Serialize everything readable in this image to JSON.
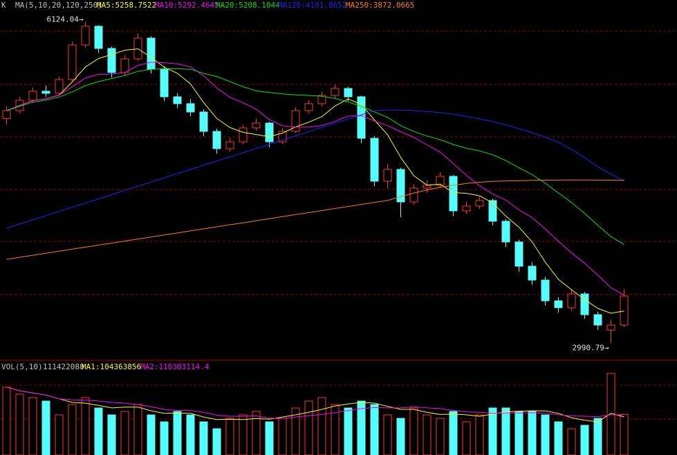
{
  "chart_data": [
    {
      "type": "candlestick",
      "title": "K",
      "subtitle": "MA(5,10,20,120,250)",
      "up_color": "#ff3232",
      "down_color": "#54fcfc",
      "ylim": [
        2900,
        6200
      ],
      "open": [
        5180,
        5257,
        5358,
        5446,
        5426,
        5560,
        5897,
        6079,
        5863,
        5628,
        5762,
        5964,
        5661,
        5392,
        5325,
        5244,
        5055,
        4887,
        4954,
        5089,
        5136,
        4954,
        5055,
        5257,
        5325,
        5405,
        5473,
        5392,
        4988,
        4570,
        4685,
        4368,
        4503,
        4530,
        4617,
        4281,
        4328,
        4382,
        4180,
        3978,
        3742,
        3607,
        3405,
        3338,
        3472,
        3270,
        3120,
        3169
      ],
      "high": [
        5300,
        5390,
        5480,
        5500,
        5590,
        5930,
        6124.04,
        6090,
        5880,
        5800,
        6010,
        5980,
        5690,
        5430,
        5370,
        5270,
        5080,
        4990,
        5120,
        5180,
        5150,
        5090,
        5290,
        5360,
        5440,
        5510,
        5490,
        5400,
        5010,
        4740,
        4700,
        4540,
        4580,
        4660,
        4630,
        4370,
        4420,
        4400,
        4200,
        4000,
        3780,
        3640,
        3440,
        3520,
        3490,
        3300,
        3220,
        3520
      ],
      "low": [
        5120,
        5230,
        5330,
        5390,
        5400,
        5540,
        5870,
        5820,
        5580,
        5600,
        5740,
        5620,
        5350,
        5280,
        5200,
        5010,
        4840,
        4860,
        4930,
        5060,
        4900,
        4930,
        5040,
        5230,
        5300,
        5380,
        5350,
        4940,
        4520,
        4500,
        4220,
        4340,
        4460,
        4500,
        4230,
        4250,
        4300,
        4140,
        3930,
        3690,
        3560,
        3360,
        3290,
        3310,
        3230,
        3120,
        2990.79,
        3150
      ],
      "close": [
        5257,
        5358,
        5446,
        5426,
        5560,
        5897,
        6079,
        5863,
        5628,
        5762,
        5964,
        5661,
        5392,
        5325,
        5244,
        5055,
        4887,
        4954,
        5089,
        5136,
        4954,
        5055,
        5257,
        5325,
        5405,
        5473,
        5392,
        4988,
        4570,
        4685,
        4368,
        4503,
        4530,
        4617,
        4281,
        4328,
        4382,
        4180,
        3978,
        3742,
        3607,
        3405,
        3338,
        3472,
        3270,
        3169,
        3169,
        3452
      ],
      "series": [
        {
          "name": "MA5:5258.7522",
          "color": "#ffff00",
          "values": [
            5257,
            5308,
            5354,
            5372,
            5409,
            5537,
            5682,
            5765,
            5805,
            5846,
            5859,
            5776,
            5681,
            5621,
            5517,
            5335,
            5181,
            5093,
            5046,
            5024,
            5004,
            5038,
            5098,
            5145,
            5199,
            5303,
            5370,
            5317,
            5166,
            5022,
            4801,
            4623,
            4531,
            4541,
            4460,
            4452,
            4428,
            4358,
            4230,
            4122,
            3978,
            3782,
            3614,
            3513,
            3418,
            3331,
            3284,
            3306
          ]
        },
        {
          "name": "MA10:5292.4645",
          "color": "#ff00ff",
          "values": [
            5257,
            5308,
            5354,
            5372,
            5409,
            5491,
            5575,
            5611,
            5613,
            5628,
            5698,
            5729,
            5723,
            5713,
            5682,
            5597,
            5479,
            5387,
            5334,
            5271,
            5170,
            5110,
            5096,
            5096,
            5112,
            5154,
            5204,
            5208,
            5156,
            5111,
            5052,
            4997,
            4924,
            4854,
            4741,
            4627,
            4526,
            4445,
            4386,
            4291,
            4215,
            4105,
            3986,
            3872,
            3770,
            3655,
            3533,
            3460
          ]
        },
        {
          "name": "MA20:5208.1044",
          "color": "#00e600",
          "values": [
            5257,
            5300,
            5340,
            5360,
            5390,
            5440,
            5500,
            5540,
            5570,
            5600,
            5640,
            5660,
            5665,
            5665,
            5660,
            5620,
            5590,
            5540,
            5490,
            5450,
            5434,
            5420,
            5410,
            5405,
            5397,
            5376,
            5342,
            5298,
            5245,
            5191,
            5111,
            5054,
            5010,
            4975,
            4927,
            4891,
            4865,
            4827,
            4771,
            4701,
            4634,
            4551,
            4455,
            4363,
            4256,
            4141,
            4030,
            3953
          ]
        },
        {
          "name": "MA120:4191.8652",
          "color": "#2020ff",
          "values": [
            4112,
            4153,
            4194,
            4235,
            4276,
            4317,
            4357,
            4398,
            4439,
            4480,
            4521,
            4562,
            4603,
            4644,
            4685,
            4726,
            4766,
            4807,
            4848,
            4889,
            4930,
            4971,
            5012,
            5053,
            5094,
            5135,
            5175,
            5216,
            5257,
            5262,
            5262,
            5258,
            5250,
            5238,
            5222,
            5202,
            5178,
            5150,
            5118,
            5082,
            5042,
            4998,
            4950,
            4880,
            4800,
            4710,
            4640,
            4570
          ]
        },
        {
          "name": "MA250:3872.0665",
          "color": "#ff8000",
          "values": [
            3809,
            3829,
            3849,
            3868,
            3888,
            3908,
            3928,
            3948,
            3967,
            3987,
            4007,
            4027,
            4047,
            4066,
            4086,
            4106,
            4126,
            4146,
            4165,
            4185,
            4205,
            4225,
            4245,
            4264,
            4284,
            4304,
            4324,
            4344,
            4363,
            4382,
            4420,
            4455,
            4485,
            4510,
            4530,
            4548,
            4560,
            4568,
            4572,
            4575,
            4578,
            4580,
            4581,
            4582,
            4582,
            4581,
            4580,
            4578
          ]
        }
      ],
      "annotations": [
        {
          "value": 6124.04,
          "label": "6124.04→"
        },
        {
          "value": 2990.79,
          "label": "2990.79→"
        }
      ]
    },
    {
      "type": "bar",
      "title": "VOL(5,10)",
      "ylim": [
        0,
        250000000
      ],
      "values": [
        185600000,
        166700000,
        157200000,
        147700000,
        109900000,
        138300000,
        157200000,
        128800000,
        109900000,
        119300000,
        138300000,
        109900000,
        90900000,
        119300000,
        109900000,
        90900000,
        72000000,
        100400000,
        109900000,
        119300000,
        90900000,
        100400000,
        128800000,
        147700000,
        157200000,
        138300000,
        128800000,
        147700000,
        138300000,
        109900000,
        100400000,
        128800000,
        109900000,
        100400000,
        119300000,
        90900000,
        109900000,
        128800000,
        128800000,
        119300000,
        119300000,
        109900000,
        90900000,
        72000000,
        81400000,
        100400000,
        223500000,
        111422088
      ],
      "series": [
        {
          "name": "MA1:104363856",
          "color": "#ffff00",
          "values": [
            186000000,
            176000000,
            170000000,
            164000000,
            154000000,
            144000000,
            142000000,
            136000000,
            129000000,
            131000000,
            131000000,
            121000000,
            114000000,
            115000000,
            114000000,
            104000000,
            97000000,
            98000000,
            97000000,
            100000000,
            98000000,
            104000000,
            110000000,
            117000000,
            125000000,
            134000000,
            140000000,
            144000000,
            142000000,
            133000000,
            125000000,
            125000000,
            117000000,
            111000000,
            112000000,
            110000000,
            106000000,
            112000000,
            118000000,
            120000000,
            121000000,
            121000000,
            114000000,
            102000000,
            95000000,
            91000000,
            114000000,
            104363856
          ]
        },
        {
          "name": "MA2:110303114.4",
          "color": "#ff00ff",
          "values": [
            186000000,
            176000000,
            170000000,
            164000000,
            154000000,
            151000000,
            150000000,
            148000000,
            144000000,
            142000000,
            138000000,
            132000000,
            125000000,
            122000000,
            122000000,
            117000000,
            109000000,
            106000000,
            106000000,
            107000000,
            101000000,
            100000000,
            104000000,
            108000000,
            111000000,
            116000000,
            122000000,
            127000000,
            130000000,
            129000000,
            129000000,
            132000000,
            129000000,
            127000000,
            122000000,
            118000000,
            117000000,
            114000000,
            115000000,
            115000000,
            116000000,
            114000000,
            110000000,
            107000000,
            106000000,
            105000000,
            110000000,
            110303114.4
          ]
        }
      ]
    }
  ]
}
